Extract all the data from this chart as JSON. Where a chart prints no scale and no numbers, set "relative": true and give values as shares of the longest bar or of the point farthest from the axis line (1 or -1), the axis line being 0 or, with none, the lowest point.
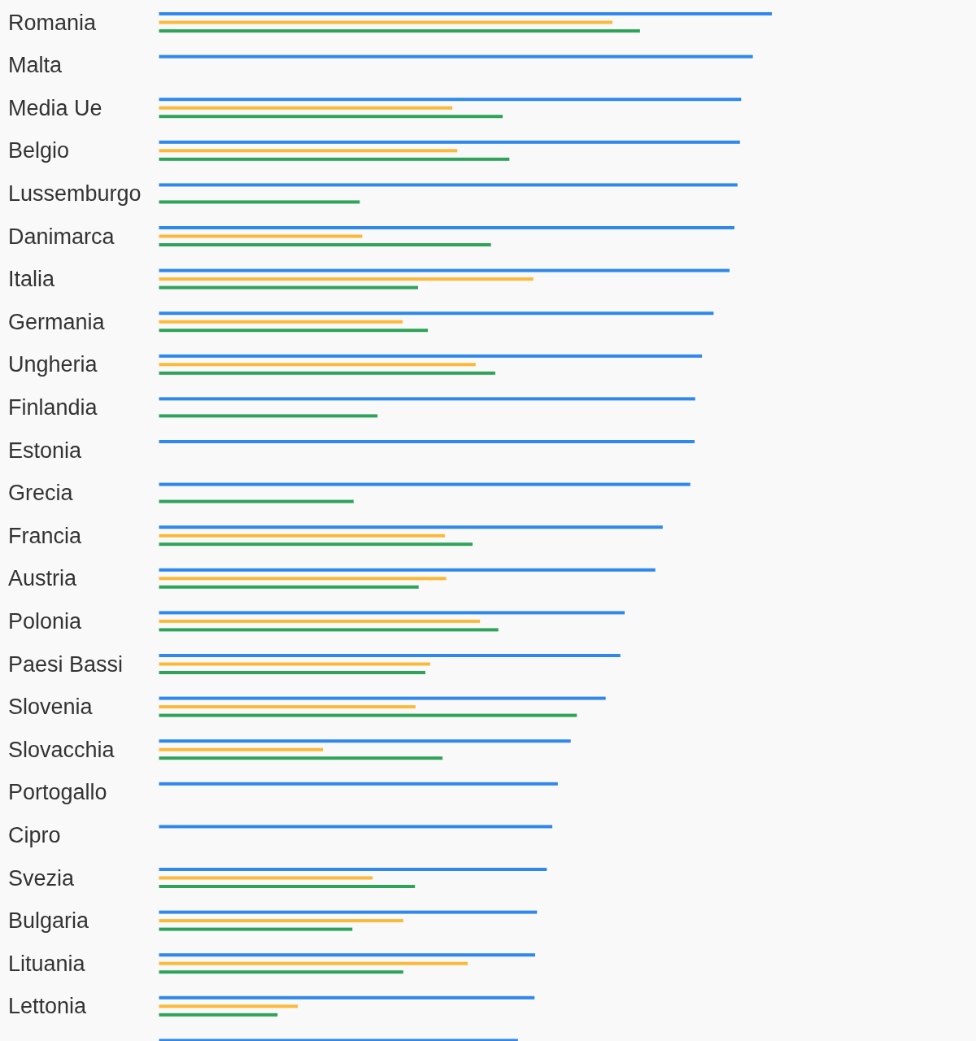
{
  "chart_data": {
    "type": "bar",
    "orientation": "horizontal",
    "relative": true,
    "categories": [
      "Romania",
      "Malta",
      "Media Ue",
      "Belgio",
      "Lussemburgo",
      "Danimarca",
      "Italia",
      "Germania",
      "Ungheria",
      "Finlandia",
      "Estonia",
      "Grecia",
      "Francia",
      "Austria",
      "Polonia",
      "Paesi Bassi",
      "Slovenia",
      "Slovacchia",
      "Portogallo",
      "Cipro",
      "Svezia",
      "Bulgaria",
      "Lituania",
      "Lettonia",
      null
    ],
    "series": [
      {
        "color": "#2f88ec",
        "values": [
          1,
          0.969,
          0.95,
          0.948,
          0.944,
          0.939,
          0.931,
          0.905,
          0.886,
          0.875,
          0.874,
          0.867,
          0.822,
          0.81,
          0.76,
          0.753,
          0.729,
          0.672,
          0.651,
          0.642,
          0.633,
          0.617,
          0.614,
          0.613,
          0.586
        ]
      },
      {
        "color": "#fbb93a",
        "values": [
          0.74,
          null,
          0.479,
          0.487,
          null,
          0.332,
          0.611,
          0.398,
          0.517,
          null,
          null,
          null,
          0.467,
          0.469,
          0.524,
          0.443,
          0.419,
          0.268,
          null,
          null,
          0.349,
          0.399,
          0.504,
          0.227,
          null
        ]
      },
      {
        "color": "#2fa35a",
        "values": [
          0.785,
          null,
          0.561,
          0.572,
          0.328,
          0.542,
          0.423,
          0.439,
          0.549,
          0.357,
          null,
          0.318,
          0.512,
          0.424,
          0.554,
          0.435,
          0.682,
          0.463,
          null,
          null,
          0.418,
          0.316,
          0.399,
          0.194,
          null
        ]
      }
    ]
  }
}
